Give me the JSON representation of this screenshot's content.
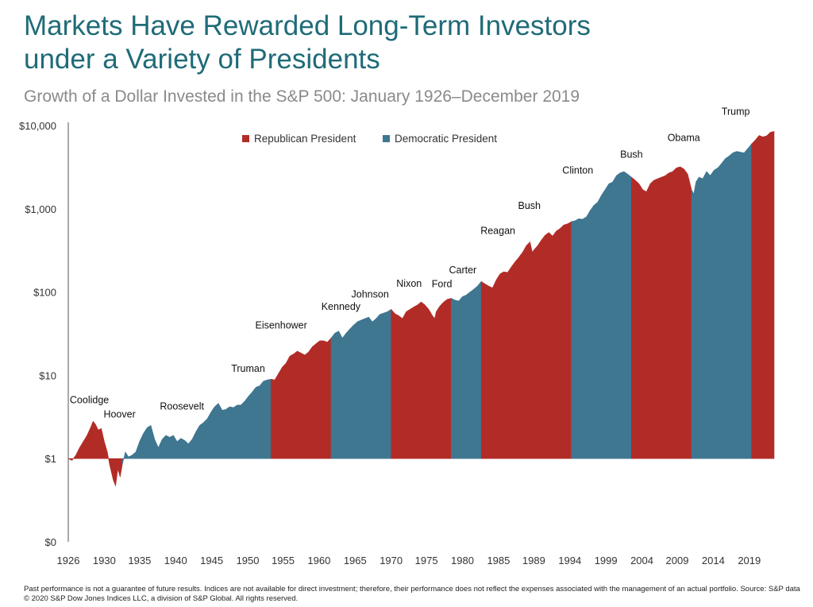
{
  "header": {
    "title_line1": "Markets Have Rewarded Long-Term Investors",
    "title_line2": "under a Variety of Presidents",
    "subtitle": "Growth of a Dollar Invested in the S&P 500: January 1926–December 2019"
  },
  "footer": {
    "disclaimer": "Past performance is not a guarantee of future results. Indices are not available for direct investment; therefore, their performance does not reflect the expenses associated with the management of an actual portfolio. Source: S&P data © 2020 S&P Dow Jones Indices LLC, a division of S&P Global. All rights reserved."
  },
  "colors": {
    "republican": "#b22c27",
    "democratic": "#3f7690",
    "title": "#1f6b78"
  },
  "chart_data": {
    "type": "area",
    "scale": "log",
    "xlim": [
      1926,
      2020
    ],
    "ylim": [
      0.1,
      10000
    ],
    "y_ticks": [
      {
        "value": 10000,
        "label": "$10,000"
      },
      {
        "value": 1000,
        "label": "$1,000"
      },
      {
        "value": 100,
        "label": "$100"
      },
      {
        "value": 10,
        "label": "$10"
      },
      {
        "value": 1,
        "label": "$1"
      },
      {
        "value": 0.1,
        "label": "$0"
      }
    ],
    "x_ticks": [
      {
        "value": 1926,
        "label": "1926"
      },
      {
        "value": 1930.8,
        "label": "1930"
      },
      {
        "value": 1935.5,
        "label": "1935"
      },
      {
        "value": 1940.3,
        "label": "1940"
      },
      {
        "value": 1945.1,
        "label": "1945"
      },
      {
        "value": 1949.9,
        "label": "1950"
      },
      {
        "value": 1954.6,
        "label": "1955"
      },
      {
        "value": 1959.4,
        "label": "1960"
      },
      {
        "value": 1964.2,
        "label": "1965"
      },
      {
        "value": 1969,
        "label": "1970"
      },
      {
        "value": 1973.7,
        "label": "1975"
      },
      {
        "value": 1978.5,
        "label": "1980"
      },
      {
        "value": 1983.3,
        "label": "1985"
      },
      {
        "value": 1988,
        "label": "1989"
      },
      {
        "value": 1992.8,
        "label": "1994"
      },
      {
        "value": 1997.6,
        "label": "1999"
      },
      {
        "value": 2002.4,
        "label": "2004"
      },
      {
        "value": 2007.1,
        "label": "2009"
      },
      {
        "value": 2011.9,
        "label": "2014"
      },
      {
        "value": 2016.7,
        "label": "2019"
      }
    ],
    "legend": [
      {
        "name": "Republican President",
        "party": "R"
      },
      {
        "name": "Democratic President",
        "party": "D"
      }
    ],
    "points": [
      [
        1926.0,
        1.0
      ],
      [
        1926.5,
        0.95
      ],
      [
        1927.0,
        1.1
      ],
      [
        1927.5,
        1.35
      ],
      [
        1928.0,
        1.6
      ],
      [
        1928.5,
        1.9
      ],
      [
        1929.0,
        2.4
      ],
      [
        1929.3,
        2.8
      ],
      [
        1929.6,
        2.6
      ],
      [
        1930.0,
        2.2
      ],
      [
        1930.4,
        2.3
      ],
      [
        1930.8,
        1.6
      ],
      [
        1931.2,
        1.2
      ],
      [
        1931.5,
        0.85
      ],
      [
        1932.0,
        0.55
      ],
      [
        1932.3,
        0.47
      ],
      [
        1932.6,
        0.75
      ],
      [
        1932.9,
        0.6
      ],
      [
        1933.2,
        0.85
      ],
      [
        1933.6,
        1.2
      ],
      [
        1934.0,
        1.05
      ],
      [
        1934.5,
        1.1
      ],
      [
        1935.0,
        1.2
      ],
      [
        1935.5,
        1.6
      ],
      [
        1936.0,
        2.0
      ],
      [
        1936.5,
        2.35
      ],
      [
        1937.0,
        2.5
      ],
      [
        1937.5,
        1.7
      ],
      [
        1938.0,
        1.35
      ],
      [
        1938.5,
        1.7
      ],
      [
        1939.0,
        1.9
      ],
      [
        1939.5,
        1.8
      ],
      [
        1940.0,
        1.9
      ],
      [
        1940.5,
        1.6
      ],
      [
        1941.0,
        1.75
      ],
      [
        1941.5,
        1.65
      ],
      [
        1942.0,
        1.5
      ],
      [
        1942.5,
        1.7
      ],
      [
        1943.0,
        2.1
      ],
      [
        1943.5,
        2.5
      ],
      [
        1944.0,
        2.7
      ],
      [
        1944.5,
        3.0
      ],
      [
        1945.0,
        3.6
      ],
      [
        1945.5,
        4.2
      ],
      [
        1946.0,
        4.6
      ],
      [
        1946.5,
        3.8
      ],
      [
        1947.0,
        3.9
      ],
      [
        1947.5,
        4.2
      ],
      [
        1948.0,
        4.1
      ],
      [
        1948.5,
        4.4
      ],
      [
        1949.0,
        4.4
      ],
      [
        1949.5,
        4.9
      ],
      [
        1950.0,
        5.6
      ],
      [
        1950.5,
        6.3
      ],
      [
        1951.0,
        7.2
      ],
      [
        1951.5,
        7.5
      ],
      [
        1952.0,
        8.5
      ],
      [
        1952.5,
        8.8
      ],
      [
        1953.0,
        9.0
      ],
      [
        1953.5,
        8.8
      ],
      [
        1954.0,
        10.5
      ],
      [
        1954.5,
        12.5
      ],
      [
        1955.0,
        14.0
      ],
      [
        1955.5,
        17.0
      ],
      [
        1956.0,
        18.0
      ],
      [
        1956.5,
        19.5
      ],
      [
        1957.0,
        18.5
      ],
      [
        1957.5,
        17.5
      ],
      [
        1958.0,
        19.0
      ],
      [
        1958.5,
        22.0
      ],
      [
        1959.0,
        24.0
      ],
      [
        1959.5,
        26.0
      ],
      [
        1960.0,
        26.0
      ],
      [
        1960.5,
        25.0
      ],
      [
        1961.0,
        28.0
      ],
      [
        1961.5,
        32.0
      ],
      [
        1962.0,
        34.0
      ],
      [
        1962.5,
        28.0
      ],
      [
        1963.0,
        32.0
      ],
      [
        1963.5,
        36.0
      ],
      [
        1964.0,
        40.0
      ],
      [
        1964.5,
        44.0
      ],
      [
        1965.0,
        46.0
      ],
      [
        1965.5,
        48.0
      ],
      [
        1966.0,
        50.0
      ],
      [
        1966.5,
        44.0
      ],
      [
        1967.0,
        48.0
      ],
      [
        1967.5,
        54.0
      ],
      [
        1968.0,
        56.0
      ],
      [
        1968.5,
        58.0
      ],
      [
        1969.0,
        62.0
      ],
      [
        1969.5,
        55.0
      ],
      [
        1970.0,
        52.0
      ],
      [
        1970.5,
        48.0
      ],
      [
        1971.0,
        58.0
      ],
      [
        1971.5,
        62.0
      ],
      [
        1972.0,
        66.0
      ],
      [
        1972.5,
        70.0
      ],
      [
        1973.0,
        76.0
      ],
      [
        1973.5,
        70.0
      ],
      [
        1974.0,
        62.0
      ],
      [
        1974.5,
        52.0
      ],
      [
        1974.8,
        48.0
      ],
      [
        1975.0,
        58.0
      ],
      [
        1975.5,
        68.0
      ],
      [
        1976.0,
        76.0
      ],
      [
        1976.5,
        82.0
      ],
      [
        1977.0,
        84.0
      ],
      [
        1977.5,
        80.0
      ],
      [
        1978.0,
        78.0
      ],
      [
        1978.5,
        88.0
      ],
      [
        1979.0,
        92.0
      ],
      [
        1979.5,
        100.0
      ],
      [
        1980.0,
        108.0
      ],
      [
        1980.5,
        118.0
      ],
      [
        1981.0,
        134.0
      ],
      [
        1981.5,
        125.0
      ],
      [
        1982.0,
        118.0
      ],
      [
        1982.5,
        112.0
      ],
      [
        1983.0,
        140.0
      ],
      [
        1983.5,
        165.0
      ],
      [
        1984.0,
        175.0
      ],
      [
        1984.5,
        172.0
      ],
      [
        1985.0,
        200.0
      ],
      [
        1985.5,
        230.0
      ],
      [
        1986.0,
        260.0
      ],
      [
        1986.5,
        300.0
      ],
      [
        1987.0,
        360.0
      ],
      [
        1987.5,
        400.0
      ],
      [
        1987.8,
        300.0
      ],
      [
        1988.0,
        320.0
      ],
      [
        1988.5,
        360.0
      ],
      [
        1989.0,
        420.0
      ],
      [
        1989.5,
        480.0
      ],
      [
        1990.0,
        520.0
      ],
      [
        1990.5,
        470.0
      ],
      [
        1991.0,
        540.0
      ],
      [
        1991.5,
        580.0
      ],
      [
        1992.0,
        640.0
      ],
      [
        1992.5,
        660.0
      ],
      [
        1993.0,
        700.0
      ],
      [
        1993.5,
        720.0
      ],
      [
        1994.0,
        760.0
      ],
      [
        1994.5,
        750.0
      ],
      [
        1995.0,
        800.0
      ],
      [
        1995.5,
        950.0
      ],
      [
        1996.0,
        1100.0
      ],
      [
        1996.5,
        1200.0
      ],
      [
        1997.0,
        1450.0
      ],
      [
        1997.5,
        1700.0
      ],
      [
        1998.0,
        2000.0
      ],
      [
        1998.5,
        2100.0
      ],
      [
        1999.0,
        2500.0
      ],
      [
        1999.5,
        2700.0
      ],
      [
        2000.0,
        2800.0
      ],
      [
        2000.5,
        2600.0
      ],
      [
        2001.0,
        2400.0
      ],
      [
        2001.5,
        2200.0
      ],
      [
        2002.0,
        2000.0
      ],
      [
        2002.5,
        1700.0
      ],
      [
        2003.0,
        1600.0
      ],
      [
        2003.5,
        2000.0
      ],
      [
        2004.0,
        2200.0
      ],
      [
        2004.5,
        2300.0
      ],
      [
        2005.0,
        2400.0
      ],
      [
        2005.5,
        2500.0
      ],
      [
        2006.0,
        2700.0
      ],
      [
        2006.5,
        2800.0
      ],
      [
        2007.0,
        3100.0
      ],
      [
        2007.5,
        3200.0
      ],
      [
        2008.0,
        3000.0
      ],
      [
        2008.5,
        2600.0
      ],
      [
        2009.0,
        1700.0
      ],
      [
        2009.3,
        1500.0
      ],
      [
        2009.6,
        2100.0
      ],
      [
        2010.0,
        2400.0
      ],
      [
        2010.5,
        2300.0
      ],
      [
        2011.0,
        2800.0
      ],
      [
        2011.5,
        2500.0
      ],
      [
        2012.0,
        2900.0
      ],
      [
        2012.5,
        3100.0
      ],
      [
        2013.0,
        3500.0
      ],
      [
        2013.5,
        4000.0
      ],
      [
        2014.0,
        4300.0
      ],
      [
        2014.5,
        4700.0
      ],
      [
        2015.0,
        4900.0
      ],
      [
        2015.5,
        4800.0
      ],
      [
        2016.0,
        4700.0
      ],
      [
        2016.5,
        5300.0
      ],
      [
        2017.0,
        6000.0
      ],
      [
        2017.5,
        6700.0
      ],
      [
        2018.0,
        7600.0
      ],
      [
        2018.5,
        7300.0
      ],
      [
        2019.0,
        7500.0
      ],
      [
        2019.5,
        8300.0
      ],
      [
        2020.0,
        8500.0
      ]
    ],
    "segments": [
      {
        "president": "Coolidge",
        "party": "R",
        "start": 1926.0,
        "end": 1929.2,
        "label_x": 1926.2,
        "label_y": 4.6
      },
      {
        "president": "Hoover",
        "party": "R",
        "start": 1929.2,
        "end": 1933.2,
        "label_x": 1930.7,
        "label_y": 3.1
      },
      {
        "president": "Roosevelt",
        "party": "D",
        "start": 1933.2,
        "end": 1945.3,
        "label_x": 1938.2,
        "label_y": 3.9
      },
      {
        "president": "Truman",
        "party": "D",
        "start": 1945.3,
        "end": 1953.0,
        "label_x": 1947.7,
        "label_y": 11.0
      },
      {
        "president": "Eisenhower",
        "party": "R",
        "start": 1953.0,
        "end": 1961.0,
        "label_x": 1950.9,
        "label_y": 36.5
      },
      {
        "president": "Kennedy",
        "party": "D",
        "start": 1961.0,
        "end": 1963.9,
        "label_x": 1959.7,
        "label_y": 61.0
      },
      {
        "president": "Johnson",
        "party": "D",
        "start": 1963.9,
        "end": 1969.0,
        "label_x": 1963.7,
        "label_y": 86.0
      },
      {
        "president": "Nixon",
        "party": "R",
        "start": 1969.0,
        "end": 1974.6,
        "label_x": 1969.7,
        "label_y": 116.0
      },
      {
        "president": "Ford",
        "party": "R",
        "start": 1974.6,
        "end": 1977.0,
        "label_x": 1974.4,
        "label_y": 114.0
      },
      {
        "president": "Carter",
        "party": "D",
        "start": 1977.0,
        "end": 1981.0,
        "label_x": 1976.7,
        "label_y": 168.0
      },
      {
        "president": "Reagan",
        "party": "R",
        "start": 1981.0,
        "end": 1989.0,
        "label_x": 1980.9,
        "label_y": 500.0
      },
      {
        "president": "Bush",
        "party": "R",
        "start": 1989.0,
        "end": 1993.0,
        "label_x": 1985.9,
        "label_y": 1000.0
      },
      {
        "president": "Clinton",
        "party": "D",
        "start": 1993.0,
        "end": 2001.0,
        "label_x": 1991.8,
        "label_y": 2650.0
      },
      {
        "president": "Bush",
        "party": "R",
        "start": 2001.0,
        "end": 2009.0,
        "label_x": 1999.5,
        "label_y": 4100.0
      },
      {
        "president": "Obama",
        "party": "D",
        "start": 2009.0,
        "end": 2017.0,
        "label_x": 2005.8,
        "label_y": 6500.0
      },
      {
        "president": "Trump",
        "party": "R",
        "start": 2017.0,
        "end": 2020.0,
        "label_x": 2013.0,
        "label_y": 13500.0
      }
    ]
  }
}
